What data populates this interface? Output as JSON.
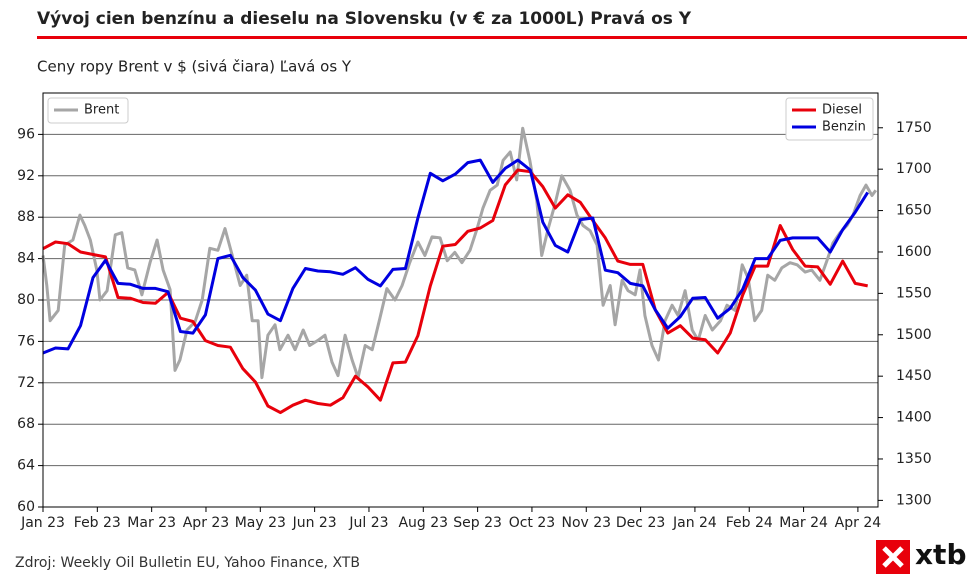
{
  "chart_data": {
    "type": "line",
    "title": "Vývoj cien benzínu a dieselu na Slovensku (v € za 1000L) Pravá os Y",
    "subtitle": "Ceny ropy Brent v $ (sivá čiara) Ľavá os Y",
    "source": "Zdroj: Weekly Oil Bulletin EU, Yahoo Finance, XTB",
    "logo": "xtb",
    "xlim": [
      0,
      15.37
    ],
    "xticks": [
      {
        "value": 0,
        "label": "Jan 23"
      },
      {
        "value": 1,
        "label": "Feb 23"
      },
      {
        "value": 2,
        "label": "Mar 23"
      },
      {
        "value": 3,
        "label": "Apr 23"
      },
      {
        "value": 4,
        "label": "May 23"
      },
      {
        "value": 5,
        "label": "Jun 23"
      },
      {
        "value": 6,
        "label": "Jul 23"
      },
      {
        "value": 7,
        "label": "Aug 23"
      },
      {
        "value": 8,
        "label": "Sep 23"
      },
      {
        "value": 9,
        "label": "Oct 23"
      },
      {
        "value": 10,
        "label": "Nov 23"
      },
      {
        "value": 11,
        "label": "Dec 23"
      },
      {
        "value": 12,
        "label": "Jan 24"
      },
      {
        "value": 13,
        "label": "Feb 24"
      },
      {
        "value": 14,
        "label": "Mar 24"
      },
      {
        "value": 15,
        "label": "Apr 24"
      }
    ],
    "ylim": [
      60,
      100
    ],
    "yticks": [
      60,
      64,
      68,
      72,
      76,
      80,
      84,
      88,
      92,
      96
    ],
    "y2lim": [
      1292,
      1792
    ],
    "y2ticks": [
      1300,
      1350,
      1400,
      1450,
      1500,
      1550,
      1600,
      1650,
      1700,
      1750
    ],
    "grid": true,
    "legend": {
      "y": "upper left",
      "y2": "upper right"
    },
    "series": [
      {
        "name": "Brent",
        "color": "#a6a6a6",
        "axis": "y",
        "x": [
          0,
          0.07,
          0.13,
          0.28,
          0.4,
          0.55,
          0.68,
          0.77,
          0.87,
          0.99,
          1.05,
          1.18,
          1.33,
          1.45,
          1.56,
          1.69,
          1.82,
          1.97,
          2.1,
          2.21,
          2.34,
          2.43,
          2.52,
          2.65,
          2.8,
          2.93,
          3.07,
          3.22,
          3.35,
          3.5,
          3.63,
          3.75,
          3.85,
          3.96,
          4.03,
          4.14,
          4.27,
          4.36,
          4.51,
          4.64,
          4.79,
          4.91,
          5.06,
          5.19,
          5.32,
          5.43,
          5.56,
          5.69,
          5.8,
          5.93,
          6.06,
          6.2,
          6.33,
          6.48,
          6.61,
          6.75,
          6.9,
          7.03,
          7.16,
          7.31,
          7.44,
          7.58,
          7.71,
          7.86,
          7.99,
          8.1,
          8.23,
          8.36,
          8.47,
          8.6,
          8.72,
          8.83,
          8.96,
          9.09,
          9.18,
          9.3,
          9.42,
          9.55,
          9.7,
          9.83,
          9.94,
          10.07,
          10.2,
          10.31,
          10.44,
          10.53,
          10.66,
          10.77,
          10.9,
          10.99,
          11.08,
          11.21,
          11.33,
          11.45,
          11.58,
          11.69,
          11.82,
          11.95,
          12.06,
          12.19,
          12.32,
          12.47,
          12.59,
          12.74,
          12.87,
          12.98,
          13.1,
          13.23,
          13.34,
          13.47,
          13.6,
          13.75,
          13.88,
          14.03,
          14.15,
          14.3,
          14.43,
          14.54,
          14.67,
          14.8,
          14.91,
          15.04,
          15.15,
          15.26,
          15.33
        ],
        "values": [
          84.3,
          81.4,
          78.0,
          79,
          85.3,
          85.8,
          88.2,
          87.2,
          85.8,
          82.9,
          80,
          80.9,
          86.3,
          86.5,
          83.1,
          82.9,
          80.5,
          83.6,
          85.8,
          82.9,
          81,
          73.2,
          74.2,
          77.1,
          77.9,
          80,
          85,
          84.8,
          86.9,
          84,
          81.4,
          82.4,
          78,
          78,
          72.5,
          76.6,
          77.6,
          75.2,
          76.6,
          75.2,
          77.1,
          75.6,
          76.1,
          76.6,
          74,
          72.7,
          76.6,
          74.2,
          72.5,
          75.6,
          75.2,
          78.2,
          81.1,
          80,
          81.4,
          83.6,
          85.6,
          84.3,
          86.1,
          86,
          83.8,
          84.6,
          83.6,
          84.8,
          86.9,
          88.9,
          90.6,
          91.1,
          93.5,
          94.3,
          91.6,
          96.6,
          93.5,
          89.6,
          84.3,
          86.9,
          89.2,
          92.0,
          90.6,
          88.2,
          87.2,
          86.7,
          85.3,
          79.5,
          81.4,
          77.6,
          81.9,
          80.9,
          80.5,
          82.9,
          78.5,
          75.6,
          74.2,
          78,
          79.5,
          78.5,
          80.9,
          77.1,
          76.1,
          78.5,
          77.1,
          78,
          79.5,
          79,
          83.4,
          82.1,
          78,
          79,
          82.4,
          81.9,
          83.1,
          83.6,
          83.4,
          82.7,
          82.9,
          81.9,
          83.8,
          85.5,
          86.5,
          87.2,
          88.2,
          90.1,
          91.1,
          90.1,
          90.6
        ]
      },
      {
        "name": "Diesel",
        "color": "#e8000b",
        "axis": "y2",
        "x": [
          0,
          0.23,
          0.46,
          0.69,
          0.92,
          1.15,
          1.38,
          1.61,
          1.84,
          2.07,
          2.3,
          2.53,
          2.76,
          2.99,
          3.22,
          3.45,
          3.68,
          3.91,
          4.14,
          4.37,
          4.6,
          4.83,
          5.06,
          5.29,
          5.52,
          5.75,
          5.98,
          6.21,
          6.44,
          6.67,
          6.9,
          7.13,
          7.36,
          7.59,
          7.82,
          8.05,
          8.28,
          8.51,
          8.74,
          8.97,
          9.2,
          9.43,
          9.66,
          9.89,
          10.12,
          10.35,
          10.58,
          10.81,
          11.04,
          11.27,
          11.5,
          11.73,
          11.96,
          12.19,
          12.42,
          12.65,
          12.88,
          13.11,
          13.34,
          13.57,
          13.8,
          14.03,
          14.26,
          14.49,
          14.72,
          14.95,
          15.18
        ],
        "values": [
          1604,
          1612,
          1610,
          1600,
          1597,
          1594,
          1545,
          1544,
          1539,
          1538,
          1551,
          1520,
          1516,
          1493,
          1487,
          1485,
          1459,
          1443,
          1414,
          1406,
          1415,
          1421,
          1417,
          1415,
          1424,
          1450,
          1437,
          1421,
          1466,
          1467,
          1499,
          1559,
          1607,
          1609,
          1625,
          1629,
          1638,
          1681,
          1699,
          1697,
          1679,
          1653,
          1669,
          1660,
          1638,
          1617,
          1589,
          1585,
          1585,
          1530,
          1502,
          1511,
          1496,
          1494,
          1478,
          1502,
          1548,
          1583,
          1583,
          1632,
          1603,
          1583,
          1582,
          1561,
          1589,
          1562,
          1559
        ]
      },
      {
        "name": "Benzin",
        "color": "#0000e0",
        "axis": "y2",
        "x": [
          0,
          0.23,
          0.46,
          0.69,
          0.92,
          1.15,
          1.38,
          1.61,
          1.84,
          2.07,
          2.3,
          2.53,
          2.76,
          2.99,
          3.22,
          3.45,
          3.68,
          3.91,
          4.14,
          4.37,
          4.6,
          4.83,
          5.06,
          5.29,
          5.52,
          5.75,
          5.98,
          6.21,
          6.44,
          6.67,
          6.9,
          7.13,
          7.36,
          7.59,
          7.82,
          8.05,
          8.28,
          8.51,
          8.74,
          8.97,
          9.2,
          9.43,
          9.66,
          9.89,
          10.12,
          10.35,
          10.58,
          10.81,
          11.04,
          11.27,
          11.5,
          11.73,
          11.96,
          12.19,
          12.42,
          12.65,
          12.88,
          13.11,
          13.34,
          13.57,
          13.8,
          14.03,
          14.26,
          14.49,
          14.72,
          14.95,
          15.18
        ],
        "values": [
          1478,
          1484,
          1483,
          1511,
          1569,
          1590,
          1562,
          1561,
          1556,
          1556,
          1552,
          1504,
          1502,
          1524,
          1592,
          1596,
          1569,
          1554,
          1525,
          1517,
          1556,
          1580,
          1577,
          1576,
          1573,
          1581,
          1567,
          1559,
          1579,
          1580,
          1641,
          1695,
          1686,
          1694,
          1708,
          1711,
          1684,
          1701,
          1711,
          1699,
          1636,
          1608,
          1600,
          1639,
          1641,
          1578,
          1575,
          1562,
          1559,
          1530,
          1508,
          1522,
          1544,
          1545,
          1520,
          1532,
          1555,
          1592,
          1592,
          1614,
          1617,
          1617,
          1617,
          1600,
          1627,
          1648,
          1672
        ]
      }
    ]
  }
}
